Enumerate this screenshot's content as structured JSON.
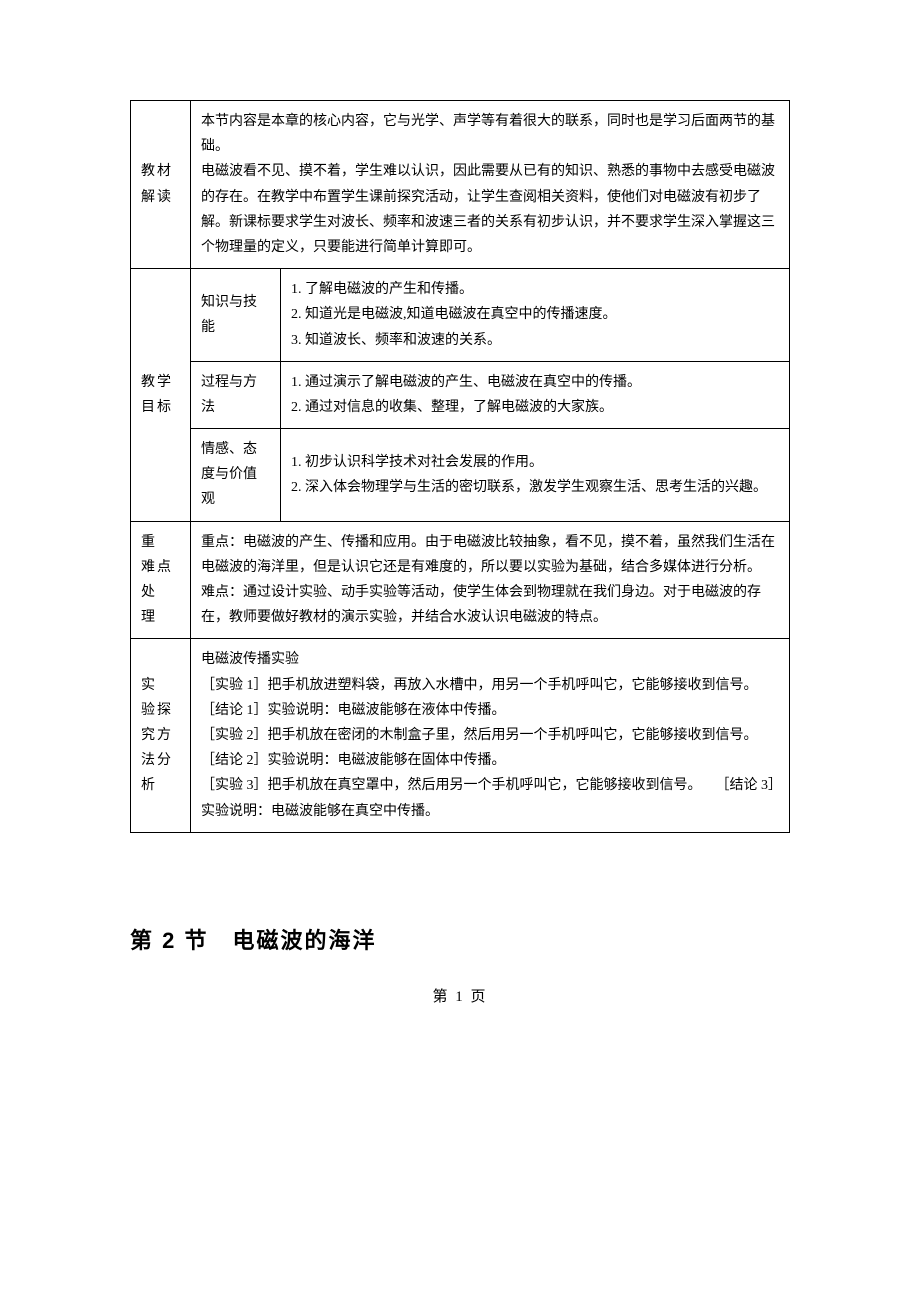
{
  "table": {
    "row1": {
      "label": "教材解读",
      "content": "本节内容是本章的核心内容，它与光学、声学等有着很大的联系，同时也是学习后面两节的基础。\n电磁波看不见、摸不着，学生难以认识，因此需要从已有的知识、熟悉的事物中去感受电磁波的存在。在教学中布置学生课前探究活动，让学生查阅相关资料，使他们对电磁波有初步了解。新课标要求学生对波长、频率和波速三者的关系有初步认识，并不要求学生深入掌握这三个物理量的定义，只要能进行简单计算即可。"
    },
    "row2": {
      "label": "教学目标",
      "sub1": {
        "label": "知识与技能",
        "content": "1. 了解电磁波的产生和传播。\n2. 知道光是电磁波,知道电磁波在真空中的传播速度。\n3. 知道波长、频率和波速的关系。"
      },
      "sub2": {
        "label": "过程与方法",
        "content": "1. 通过演示了解电磁波的产生、电磁波在真空中的传播。\n2. 通过对信息的收集、整理，了解电磁波的大家族。"
      },
      "sub3": {
        "label": "情感、态度与价值观",
        "content": "1. 初步认识科学技术对社会发展的作用。\n2. 深入体会物理学与生活的密切联系，激发学生观察生活、思考生活的兴趣。"
      }
    },
    "row3": {
      "label": "重　难点\n处　理",
      "content": "重点：电磁波的产生、传播和应用。由于电磁波比较抽象，看不见，摸不着，虽然我们生活在电磁波的海洋里，但是认识它还是有难度的，所以要以实验为基础，结合多媒体进行分析。\n难点：通过设计实验、动手实验等活动，使学生体会到物理就在我们身边。对于电磁波的存在，教师要做好教材的演示实验，并结合水波认识电磁波的特点。"
    },
    "row4": {
      "label": "实　验探　究方　法分　析",
      "content": "电磁波传播实验\n［实验 1］把手机放进塑料袋，再放入水槽中，用另一个手机呼叫它，它能够接收到信号。\n［结论 1］实验说明：电磁波能够在液体中传播。\n［实验 2］把手机放在密闭的木制盒子里，然后用另一个手机呼叫它，它能够接收到信号。\n［结论 2］实验说明：电磁波能够在固体中传播。\n［实验 3］把手机放在真空罩中，然后用另一个手机呼叫它，它能够接收到信号。　　［结论 3］实验说明：电磁波能够在真空中传播。"
    }
  },
  "section_title": "第 2 节　电磁波的海洋",
  "page_number": "第 1 页",
  "colors": {
    "text": "#000000",
    "border": "#000000",
    "background": "#ffffff"
  },
  "typography": {
    "body_fontsize": 14,
    "title_fontsize": 22,
    "page_number_fontsize": 15,
    "line_height": 1.8
  }
}
